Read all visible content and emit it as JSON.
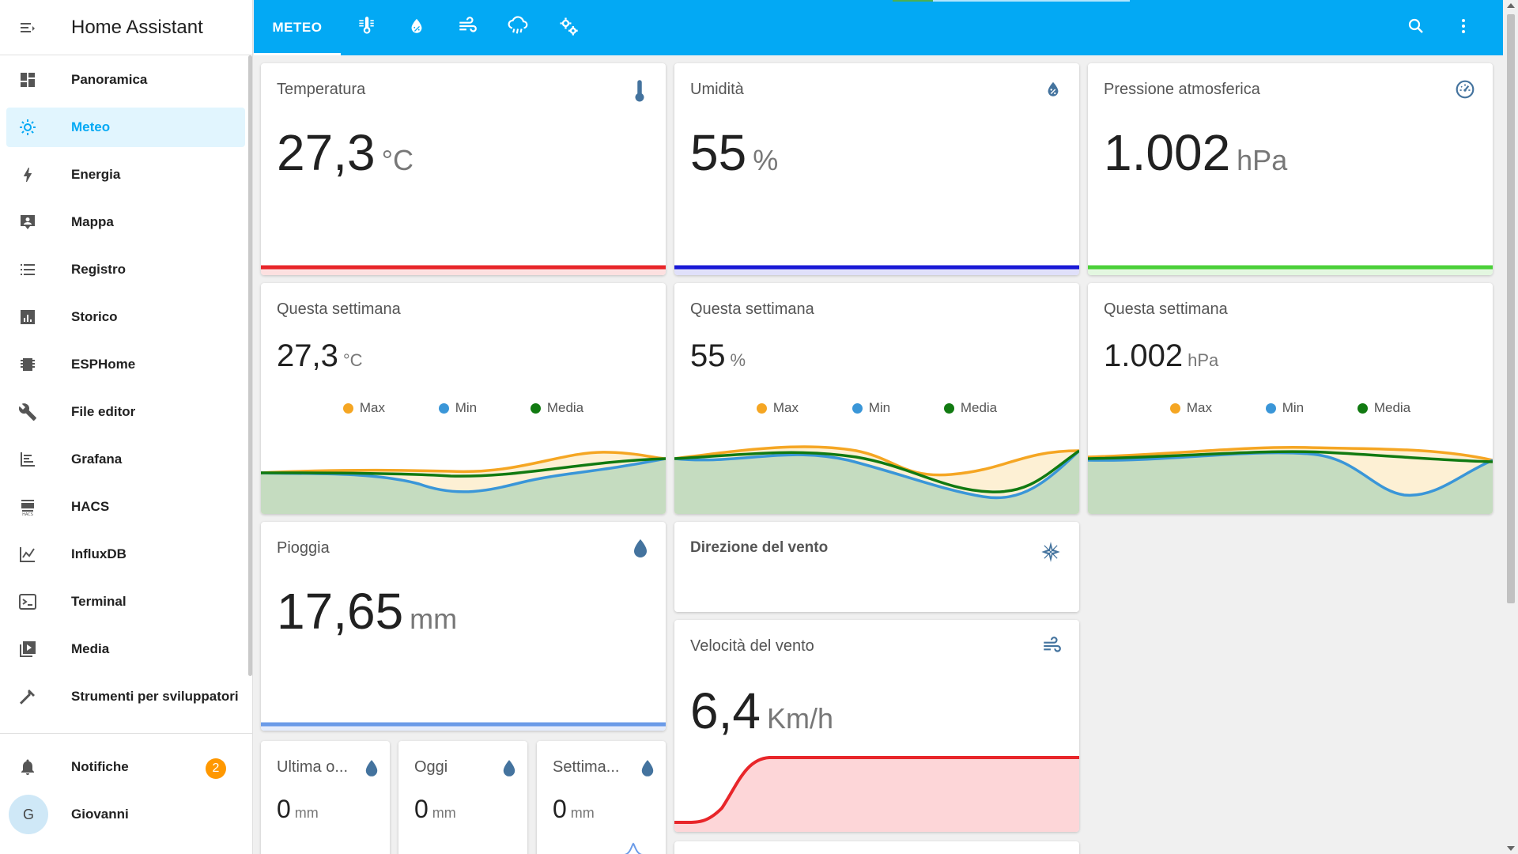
{
  "app": {
    "title": "Home Assistant"
  },
  "sidebar": {
    "items": [
      {
        "label": "Panoramica",
        "icon": "dashboard-icon"
      },
      {
        "label": "Meteo",
        "icon": "weather-icon",
        "active": true
      },
      {
        "label": "Energia",
        "icon": "lightning-icon"
      },
      {
        "label": "Mappa",
        "icon": "map-account-icon"
      },
      {
        "label": "Registro",
        "icon": "logbook-icon"
      },
      {
        "label": "Storico",
        "icon": "history-chart-icon"
      },
      {
        "label": "ESPHome",
        "icon": "chip-icon"
      },
      {
        "label": "File editor",
        "icon": "wrench-icon"
      },
      {
        "label": "Grafana",
        "icon": "grafana-icon"
      },
      {
        "label": "HACS",
        "icon": "hacs-icon"
      },
      {
        "label": "InfluxDB",
        "icon": "chart-line-icon"
      },
      {
        "label": "Terminal",
        "icon": "terminal-icon"
      },
      {
        "label": "Media",
        "icon": "media-icon"
      },
      {
        "label": "Strumenti per sviluppatori",
        "icon": "hammer-icon"
      }
    ],
    "notifications": {
      "label": "Notifiche",
      "count": "2"
    },
    "user": {
      "label": "Giovanni",
      "initial": "G"
    }
  },
  "header": {
    "tabs": [
      {
        "label": "METEO",
        "active": true
      },
      {
        "icon": "thermometer-lines-icon"
      },
      {
        "icon": "water-percent-icon"
      },
      {
        "icon": "wind-icon"
      },
      {
        "icon": "weather-pouring-icon"
      },
      {
        "icon": "cogs-icon"
      }
    ],
    "actions": [
      "search-icon",
      "more-vert-icon"
    ],
    "loading_progress": 0.17
  },
  "colors": {
    "accent": "#03a9f4",
    "temp": "#e8262a",
    "humidity": "#1a1ad6",
    "pressure": "#4cd03a",
    "rain": "#6b9be8",
    "series_max": "#f5a623",
    "series_min": "#3a96d8",
    "series_avg": "#117a11"
  },
  "cards": {
    "temperature": {
      "title": "Temperatura",
      "value": "27,3",
      "unit": "°C"
    },
    "humidity": {
      "title": "Umidità",
      "value": "55",
      "unit": "%"
    },
    "pressure": {
      "title": "Pressione atmosferica",
      "value": "1.002",
      "unit": "hPa"
    },
    "week_temp": {
      "title": "Questa settimana",
      "value": "27,3",
      "unit": "°C"
    },
    "week_hum": {
      "title": "Questa settimana",
      "value": "55",
      "unit": "%"
    },
    "week_press": {
      "title": "Questa settimana",
      "value": "1.002",
      "unit": "hPa"
    },
    "legend": [
      "Max",
      "Min",
      "Media"
    ],
    "rain": {
      "title": "Pioggia",
      "value": "17,65",
      "unit": "mm"
    },
    "wind_dir": {
      "title": "Direzione del vento"
    },
    "wind_speed": {
      "title": "Velocità del vento",
      "value": "6,4",
      "unit": "Km/h"
    },
    "rain_last": {
      "title": "Ultima o...",
      "value": "0",
      "unit": "mm"
    },
    "rain_today": {
      "title": "Oggi",
      "value": "0",
      "unit": "mm"
    },
    "rain_week": {
      "title": "Settima...",
      "value": "0",
      "unit": "mm"
    }
  }
}
